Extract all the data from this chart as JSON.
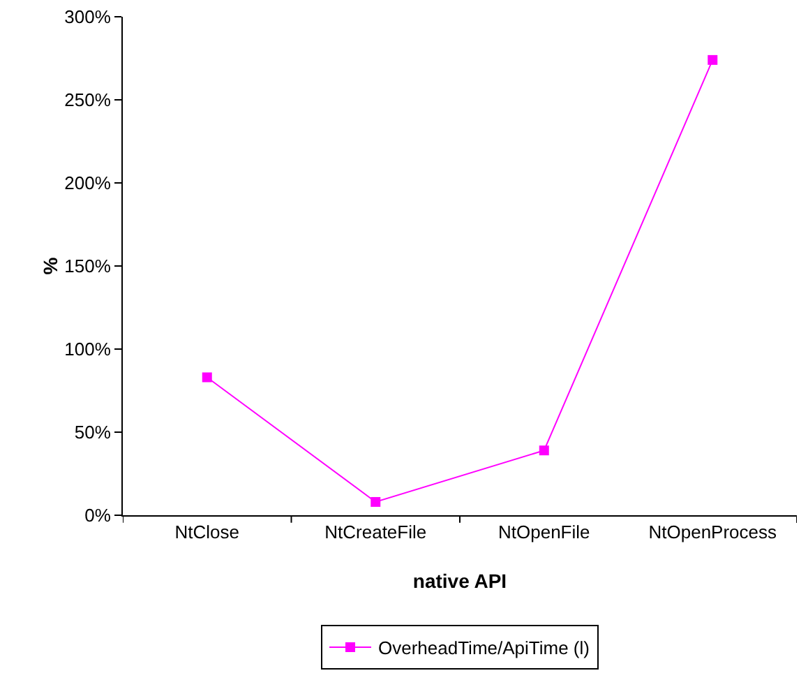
{
  "chart_data": {
    "type": "line",
    "xlabel": "native API",
    "ylabel": "%",
    "categories": [
      "NtClose",
      "NtCreateFile",
      "NtOpenFile",
      "NtOpenProcess"
    ],
    "series": [
      {
        "name": "OverheadTime/ApiTime (l)",
        "color": "#ff00ff",
        "values": [
          83,
          8,
          39,
          274
        ]
      }
    ],
    "ylim": [
      0,
      300
    ],
    "yticks": [
      {
        "value": 0,
        "label": "0%"
      },
      {
        "value": 50,
        "label": "50%"
      },
      {
        "value": 100,
        "label": "100%"
      },
      {
        "value": 150,
        "label": "150%"
      },
      {
        "value": 200,
        "label": "200%"
      },
      {
        "value": 250,
        "label": "250%"
      },
      {
        "value": 300,
        "label": "300%"
      }
    ],
    "grid": false,
    "legend": "bottom",
    "marker": "square",
    "line_style": "solid"
  }
}
